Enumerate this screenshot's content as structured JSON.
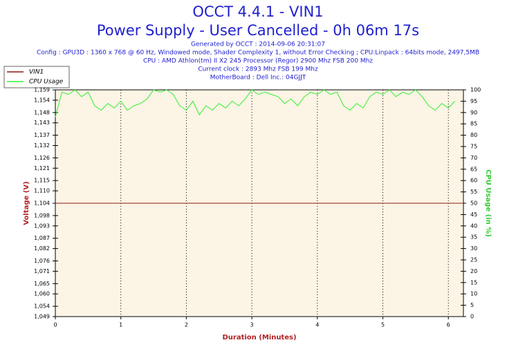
{
  "chart_data": {
    "type": "line",
    "title": "OCCT 4.4.1 - VIN1",
    "subtitle": "Power Supply - User Cancelled - 0h 06m 17s",
    "info": [
      "Generated by OCCT : 2014-09-06 20:31:07",
      "Config : GPU3D : 1360 x 768 @ 60 Hz, Windowed mode, Shader Complexity 1, without Error Checking ; CPU:Linpack : 64bits mode, 2497,5MB",
      "CPU : AMD Athlon(tm) II X2 245 Processor (Regor) 2900 Mhz FSB 200 Mhz",
      "Current clock : 2893 Mhz FSB 199 Mhz",
      "MotherBoard : Dell Inc.: 04GJJT"
    ],
    "xlabel": "Duration (Minutes)",
    "ylabel": "Voltage (V)",
    "y2label": "CPU Usage (in %)",
    "xlim": [
      0,
      6.23
    ],
    "xticks": [
      0,
      1,
      2,
      3,
      4,
      5,
      6
    ],
    "ylim": [
      1.049,
      1.159
    ],
    "yticks": [
      {
        "value": 1.049,
        "label": "1,049"
      },
      {
        "value": 1.054,
        "label": "1,054"
      },
      {
        "value": 1.06,
        "label": "1,060"
      },
      {
        "value": 1.065,
        "label": "1,065"
      },
      {
        "value": 1.071,
        "label": "1,071"
      },
      {
        "value": 1.076,
        "label": "1,076"
      },
      {
        "value": 1.082,
        "label": "1,082"
      },
      {
        "value": 1.087,
        "label": "1,087"
      },
      {
        "value": 1.093,
        "label": "1,093"
      },
      {
        "value": 1.098,
        "label": "1,098"
      },
      {
        "value": 1.104,
        "label": "1,104"
      },
      {
        "value": 1.11,
        "label": "1,110"
      },
      {
        "value": 1.115,
        "label": "1,115"
      },
      {
        "value": 1.121,
        "label": "1,121"
      },
      {
        "value": 1.126,
        "label": "1,126"
      },
      {
        "value": 1.132,
        "label": "1,132"
      },
      {
        "value": 1.137,
        "label": "1,137"
      },
      {
        "value": 1.143,
        "label": "1,143"
      },
      {
        "value": 1.148,
        "label": "1,148"
      },
      {
        "value": 1.154,
        "label": "1,154"
      },
      {
        "value": 1.159,
        "label": "1,159"
      }
    ],
    "y2lim": [
      0,
      100
    ],
    "y2ticks": [
      0,
      5,
      10,
      15,
      20,
      25,
      30,
      35,
      40,
      45,
      50,
      55,
      60,
      65,
      70,
      75,
      80,
      85,
      90,
      95,
      100
    ],
    "grid": true,
    "legend": "top-left",
    "series": [
      {
        "name": "VIN1",
        "color": "#8b1a1a",
        "x": [
          0,
          6.23
        ],
        "values": [
          1.104,
          1.104
        ]
      },
      {
        "name": "CPU Usage",
        "color": "#33ee33",
        "axis": "y2",
        "x": [
          0,
          0.1,
          0.2,
          0.3,
          0.4,
          0.5,
          0.6,
          0.7,
          0.8,
          0.9,
          1.0,
          1.1,
          1.2,
          1.3,
          1.4,
          1.5,
          1.6,
          1.7,
          1.8,
          1.9,
          2.0,
          2.1,
          2.2,
          2.3,
          2.4,
          2.5,
          2.6,
          2.7,
          2.8,
          2.9,
          3.0,
          3.1,
          3.2,
          3.3,
          3.4,
          3.5,
          3.6,
          3.7,
          3.8,
          3.9,
          4.0,
          4.1,
          4.2,
          4.3,
          4.4,
          4.5,
          4.6,
          4.7,
          4.8,
          4.9,
          5.0,
          5.1,
          5.2,
          5.3,
          5.4,
          5.5,
          5.6,
          5.7,
          5.8,
          5.9,
          6.0,
          6.1
        ],
        "values": [
          88,
          99,
          98,
          100,
          97,
          99,
          93,
          91,
          94,
          92,
          95,
          91,
          93,
          94,
          96,
          100,
          99,
          100,
          98,
          93,
          91,
          95,
          89,
          93,
          91,
          94,
          92,
          95,
          93,
          96,
          100,
          98,
          99,
          98,
          97,
          94,
          96,
          93,
          97,
          99,
          98,
          100,
          98,
          99,
          93,
          91,
          94,
          92,
          97,
          99,
          98,
          100,
          97,
          99,
          98,
          100,
          97,
          93,
          91,
          94,
          92,
          95
        ]
      }
    ]
  }
}
